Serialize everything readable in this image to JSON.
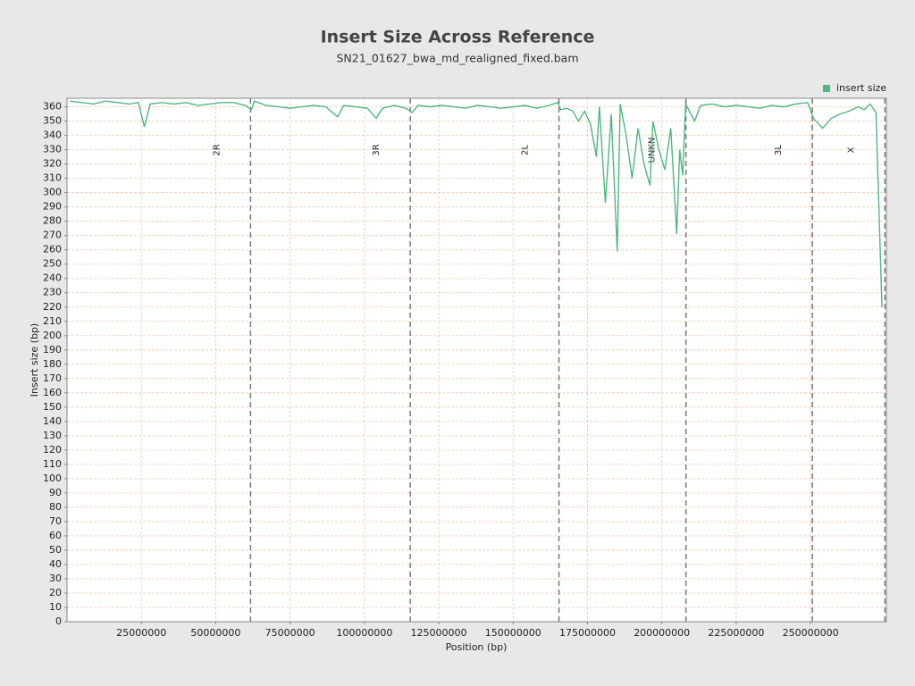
{
  "chart_data": {
    "type": "line",
    "title": "Insert Size Across Reference",
    "subtitle": "SN21_01627_bwa_md_realigned_fixed.bam",
    "x_label": "Position (bp)",
    "y_label": "Insert size (bp)",
    "legend_position": "top-right",
    "grid": true,
    "xlim": [
      0,
      275500000
    ],
    "ylim": [
      0,
      366
    ],
    "xticks": [
      25000000,
      50000000,
      75000000,
      100000000,
      125000000,
      150000000,
      175000000,
      200000000,
      225000000,
      250000000
    ],
    "yticks": [
      0,
      10,
      20,
      30,
      40,
      50,
      60,
      70,
      80,
      90,
      100,
      110,
      120,
      130,
      140,
      150,
      160,
      170,
      180,
      190,
      200,
      210,
      220,
      230,
      240,
      250,
      260,
      270,
      280,
      290,
      300,
      310,
      320,
      330,
      340,
      350,
      360
    ],
    "chromosomes": [
      {
        "name": "2R",
        "end": 61700000
      },
      {
        "name": "3R",
        "end": 115400000
      },
      {
        "name": "2L",
        "end": 165400000
      },
      {
        "name": "UNKN",
        "end": 208100000
      },
      {
        "name": "3L",
        "end": 250600000
      },
      {
        "name": "X",
        "end": 275000000
      }
    ],
    "x": [
      1000000,
      5000000,
      9000000,
      13000000,
      17000000,
      21000000,
      24000000,
      26000000,
      28000000,
      32000000,
      36000000,
      40000000,
      44000000,
      48000000,
      52000000,
      56000000,
      60000000,
      62000000,
      63000000,
      67000000,
      71000000,
      75000000,
      79000000,
      83000000,
      87000000,
      91000000,
      93000000,
      97000000,
      101000000,
      104000000,
      106000000,
      110000000,
      114000000,
      116000000,
      118000000,
      122000000,
      126000000,
      130000000,
      134000000,
      138000000,
      142000000,
      146000000,
      150000000,
      154000000,
      158000000,
      162000000,
      165000000,
      166000000,
      168000000,
      170000000,
      172000000,
      174000000,
      176000000,
      178000000,
      179000000,
      181000000,
      183000000,
      185000000,
      186000000,
      188000000,
      190000000,
      192000000,
      194000000,
      196000000,
      197000000,
      199000000,
      201000000,
      203000000,
      205000000,
      206000000,
      207000000,
      208000000,
      211000000,
      213000000,
      217000000,
      221000000,
      225000000,
      229000000,
      233000000,
      237000000,
      241000000,
      245000000,
      249000000,
      251000000,
      254000000,
      257000000,
      260000000,
      263000000,
      266000000,
      268000000,
      270000000,
      272000000,
      274000000
    ],
    "series": [
      {
        "name": "insert size",
        "color": "#4cb882",
        "values": [
          364,
          363,
          362,
          364,
          363,
          362,
          363,
          346,
          362,
          363,
          362,
          363,
          361,
          362,
          363,
          363,
          361,
          358,
          364,
          361,
          360,
          359,
          360,
          361,
          360,
          353,
          361,
          360,
          359,
          352,
          359,
          361,
          359,
          356,
          361,
          360,
          361,
          360,
          359,
          361,
          360,
          359,
          360,
          361,
          359,
          361,
          363,
          358,
          359,
          357,
          350,
          357,
          348,
          325,
          360,
          293,
          355,
          259,
          362,
          340,
          310,
          345,
          320,
          305,
          350,
          330,
          316,
          345,
          271,
          330,
          312,
          362,
          350,
          361,
          362,
          360,
          361,
          360,
          359,
          361,
          360,
          362,
          363,
          352,
          345,
          352,
          355,
          357,
          360,
          358,
          362,
          356,
          220
        ]
      }
    ]
  }
}
